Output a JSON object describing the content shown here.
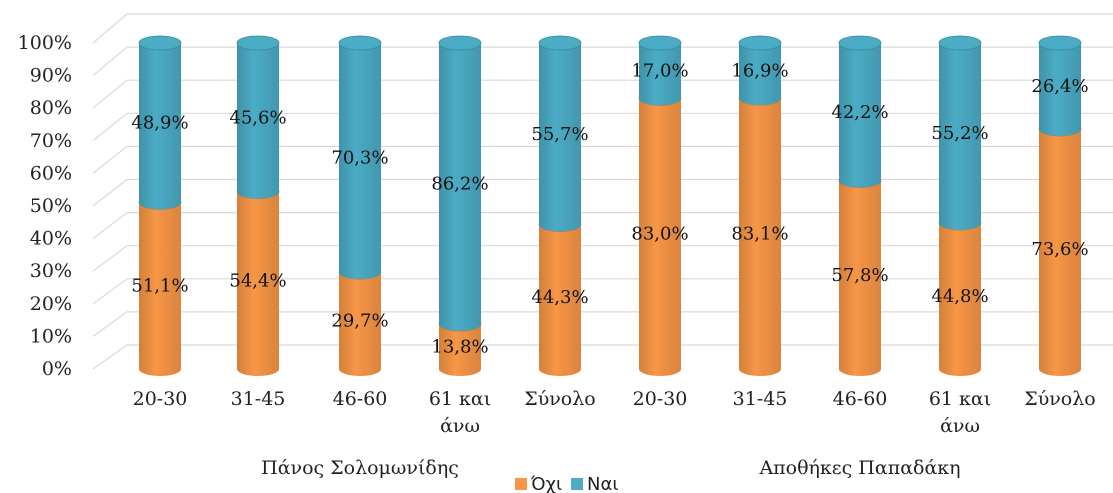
{
  "chart_data": {
    "type": "bar",
    "stacked": true,
    "percent": true,
    "three_d": true,
    "grid": true,
    "legend_position": "bottom",
    "ylim": [
      0,
      100
    ],
    "y_ticks": [
      "0%",
      "10%",
      "20%",
      "30%",
      "40%",
      "50%",
      "60%",
      "70%",
      "80%",
      "90%",
      "100%"
    ],
    "categories": [
      "20-30",
      "31-45",
      "46-60",
      "61 και άνω",
      "Σύνολο",
      "20-30",
      "31-45",
      "46-60",
      "61 και άνω",
      "Σύνολο"
    ],
    "groups": [
      {
        "label": "Πάνος Σολομωνίδης",
        "start": 0,
        "end": 4
      },
      {
        "label": "Αποθήκες Παπαδάκη",
        "start": 5,
        "end": 9
      }
    ],
    "series": [
      {
        "name": "Όχι",
        "color": "#F79646",
        "values": [
          51.1,
          54.4,
          29.7,
          13.8,
          44.3,
          83.0,
          83.1,
          57.8,
          44.8,
          73.6
        ],
        "labels": [
          "51,1%",
          "54,4%",
          "29,7%",
          "13,8%",
          "44,3%",
          "83,0%",
          "83,1%",
          "57,8%",
          "44,8%",
          "73,6%"
        ]
      },
      {
        "name": "Ναι",
        "color": "#4BACC6",
        "values": [
          48.9,
          45.6,
          70.3,
          86.2,
          55.7,
          17.0,
          16.9,
          42.2,
          55.2,
          26.4
        ],
        "labels": [
          "48,9%",
          "45,6%",
          "70,3%",
          "86,2%",
          "55,7%",
          "17,0%",
          "16,9%",
          "42,2%",
          "55,2%",
          "26,4%"
        ]
      }
    ]
  }
}
